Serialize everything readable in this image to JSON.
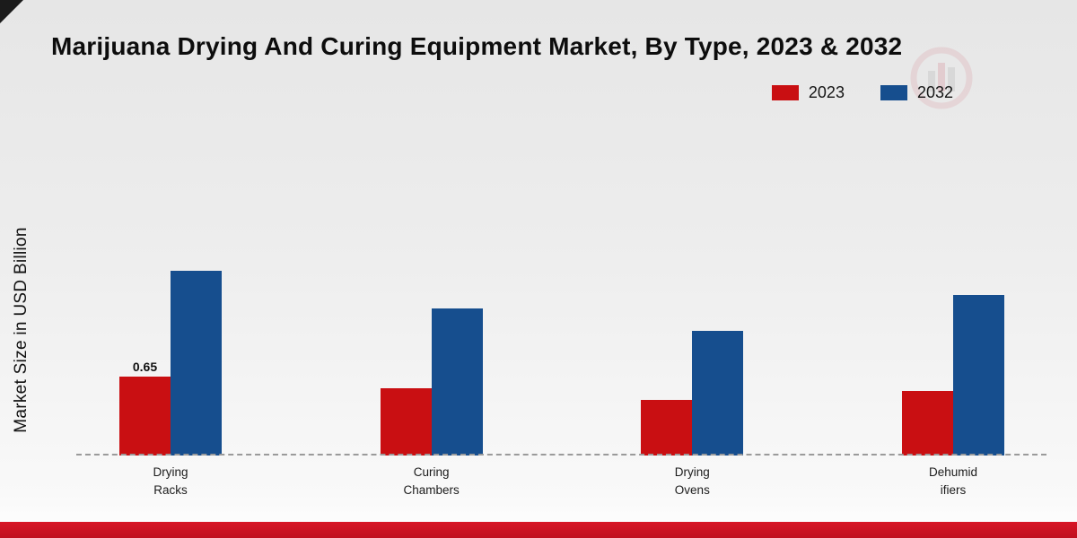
{
  "title": "Marijuana Drying And Curing Equipment Market, By Type, 2023 & 2032",
  "chart_data": {
    "type": "bar",
    "title": "Marijuana Drying And Curing Equipment Market, By Type, 2023 & 2032",
    "xlabel": "",
    "ylabel": "Market Size in USD Billion",
    "categories": [
      "Drying\nRacks",
      "Curing\nChambers",
      "Drying\nOvens",
      "Dehumid\nifiers"
    ],
    "ylim": [
      0,
      2.65
    ],
    "grid": false,
    "legend_position": "top-right",
    "axis_style": "dashed-baseline-only",
    "series": [
      {
        "name": "2023",
        "color": "#c90f12",
        "values": [
          0.65,
          0.55,
          0.46,
          0.53
        ],
        "value_labels": [
          "0.65",
          null,
          null,
          null
        ]
      },
      {
        "name": "2032",
        "color": "#164e8e",
        "values": [
          1.52,
          1.21,
          1.02,
          1.32
        ],
        "value_labels": [
          null,
          null,
          null,
          null
        ]
      }
    ]
  },
  "footer": {
    "band_color": "#c8102e"
  }
}
